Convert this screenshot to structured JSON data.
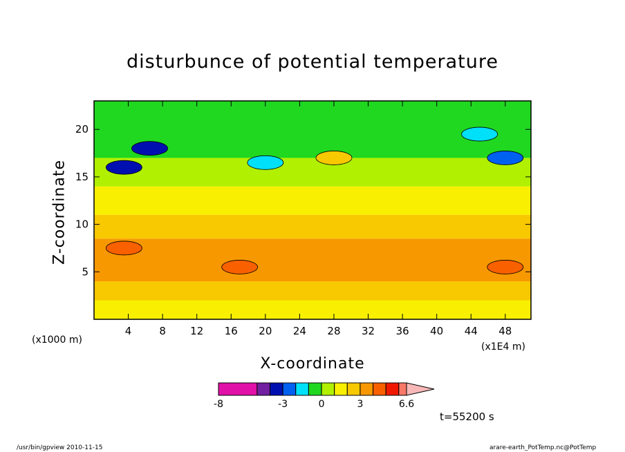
{
  "chart_data": {
    "type": "heatmap",
    "title": "disturbunce of potential temperature",
    "xlabel": "X-coordinate",
    "ylabel": "Z-coordinate",
    "x_unit_left": "(x1000 m)",
    "x_unit_right": "(x1E4 m)",
    "xlim": [
      0,
      51
    ],
    "ylim": [
      0,
      23
    ],
    "x_ticks": [
      4,
      8,
      12,
      16,
      20,
      24,
      28,
      32,
      36,
      40,
      44,
      48
    ],
    "y_ticks": [
      5,
      10,
      15,
      20
    ],
    "colorbar": {
      "tick_labels": [
        "-8",
        "-3",
        "0",
        "3",
        "6.6"
      ],
      "tick_values": [
        -8,
        -3,
        0,
        3,
        6.6
      ],
      "bins": [
        {
          "from": -8,
          "to": -5,
          "color": "#e010a8"
        },
        {
          "from": -5,
          "to": -4,
          "color": "#7020a0"
        },
        {
          "from": -4,
          "to": -3,
          "color": "#0010b0"
        },
        {
          "from": -3,
          "to": -2,
          "color": "#0060f0"
        },
        {
          "from": -2,
          "to": -1,
          "color": "#00e0f8"
        },
        {
          "from": -1,
          "to": 0,
          "color": "#20d820"
        },
        {
          "from": 0,
          "to": 1,
          "color": "#b0f000"
        },
        {
          "from": 1,
          "to": 2,
          "color": "#f8f000"
        },
        {
          "from": 2,
          "to": 3,
          "color": "#f8c800"
        },
        {
          "from": 3,
          "to": 4,
          "color": "#f89800"
        },
        {
          "from": 4,
          "to": 5,
          "color": "#f86000"
        },
        {
          "from": 5,
          "to": 6,
          "color": "#f01800"
        },
        {
          "from": 6,
          "to": 6.6,
          "color": "#f87868"
        },
        {
          "from": 6.6,
          "to": null,
          "color": "#f8b8b8"
        }
      ]
    },
    "field_bands_by_height": [
      {
        "z_from": 0,
        "z_to": 2,
        "value_class": 1.5
      },
      {
        "z_from": 2,
        "z_to": 4,
        "value_class": 2.5
      },
      {
        "z_from": 4,
        "z_to": 8.5,
        "value_class": 3.5
      },
      {
        "z_from": 8.5,
        "z_to": 11,
        "value_class": 2.5
      },
      {
        "z_from": 11,
        "z_to": 14,
        "value_class": 1.5
      },
      {
        "z_from": 14,
        "z_to": 17,
        "value_class": 0.5
      },
      {
        "z_from": 17,
        "z_to": 23,
        "value_class": -0.5
      }
    ],
    "features": [
      {
        "x": 3.5,
        "z": 16,
        "value_class": -3.5
      },
      {
        "x": 6.5,
        "z": 18,
        "value_class": -3.5
      },
      {
        "x": 48,
        "z": 17,
        "value_class": -2.5
      },
      {
        "x": 20,
        "z": 16.5,
        "value_class": -1.5
      },
      {
        "x": 45,
        "z": 19.5,
        "value_class": -1.5
      },
      {
        "x": 28,
        "z": 17,
        "value_class": 2.5
      },
      {
        "x": 17,
        "z": 5.5,
        "value_class": 4.5
      },
      {
        "x": 48,
        "z": 5.5,
        "value_class": 4.5
      },
      {
        "x": 3.5,
        "z": 7.5,
        "value_class": 4.5
      }
    ]
  },
  "timestamp": "t=55200 s",
  "footer_left": "/usr/bin/gpview  2010-11-15",
  "footer_right": "arare-earth_PotTemp.nc@PotTemp"
}
